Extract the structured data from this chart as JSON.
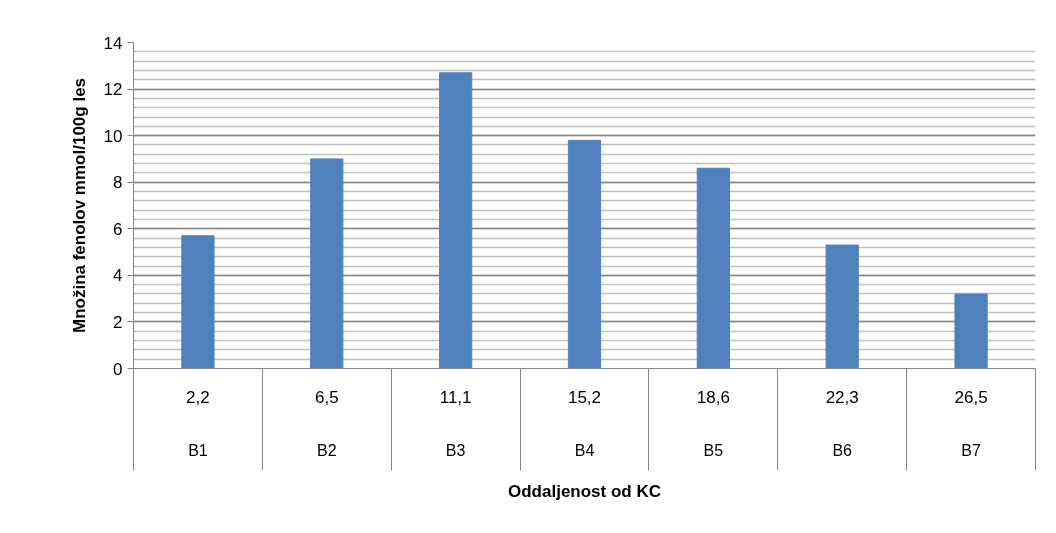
{
  "chart_data": {
    "type": "bar",
    "xlabel": "Oddaljenost od KC",
    "ylabel": "Množina fenolov mmol/100g les",
    "categories": [
      "2,2",
      "6,5",
      "11,1",
      "15,2",
      "18,6",
      "22,3",
      "26,5"
    ],
    "values": [
      5.7,
      9.0,
      12.7,
      9.8,
      8.6,
      5.3,
      3.2
    ],
    "color": "#4f81bd",
    "annotations": [
      "B1",
      "B2",
      "B3",
      "B4",
      "B5",
      "B6",
      "B7"
    ],
    "ylim": [
      0,
      14
    ],
    "yticks": [
      0,
      2,
      4,
      6,
      8,
      10,
      12,
      14
    ],
    "grid": "y"
  }
}
